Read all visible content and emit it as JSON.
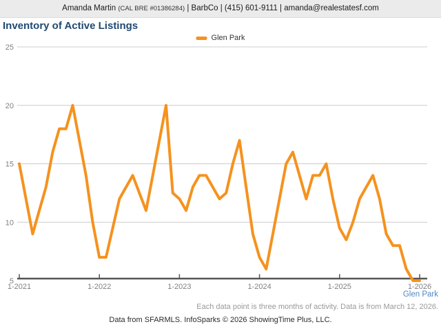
{
  "header": {
    "agent_name": "Amanda Martin",
    "license": "(CAL BRE #01386284)",
    "contact": "| BarbCo | (415) 601-9111 | amanda@realestatesf.com"
  },
  "chart": {
    "title": "Inventory of Active Listings"
  },
  "legend": {
    "label": "Glen Park"
  },
  "series_label_bottom": "Glen Park",
  "footnotes": {
    "data_note": "Each data point is three months of activity. Data is from March 12, 2026.",
    "attribution": "Data from SFARMLS. InfoSparks © 2026 ShowingTime Plus, LLC."
  },
  "colors": {
    "line": "#F5921E",
    "title": "#1F4971",
    "series_label_blue": "#4F86C6",
    "header_bg": "#EBEBEB",
    "grid": "#CCCCCC",
    "axis": "#555555",
    "tick_label": "#808080"
  },
  "chart_data": {
    "type": "line",
    "title": "Inventory of Active Listings",
    "x_frequency": "monthly",
    "x_start": "2021-01",
    "x_end": "2026-01",
    "x_tick_labels": [
      "1-2021",
      "1-2022",
      "1-2023",
      "1-2024",
      "1-2025",
      "1-2026"
    ],
    "y_ticks": [
      5,
      10,
      15,
      20,
      25
    ],
    "ylim": [
      5,
      25
    ],
    "grid": "horizontal",
    "legend_position": "top-center",
    "note": "Each data point is three months of activity.",
    "series": [
      {
        "name": "Glen Park",
        "color": "#F5921E",
        "values": [
          15,
          12,
          9,
          11,
          13,
          16,
          18,
          18,
          20,
          17,
          14,
          10,
          7,
          7,
          9.5,
          12,
          13,
          14,
          12.5,
          11,
          14,
          17,
          20,
          12.5,
          12,
          11,
          13,
          14,
          14,
          13,
          12,
          12.5,
          15,
          17,
          13,
          9,
          7,
          6,
          9,
          12,
          15,
          16,
          14,
          12,
          14,
          14,
          15,
          12,
          9.5,
          8.5,
          10,
          12,
          13,
          14,
          12,
          9,
          8,
          8,
          6,
          5,
          5
        ]
      }
    ]
  }
}
